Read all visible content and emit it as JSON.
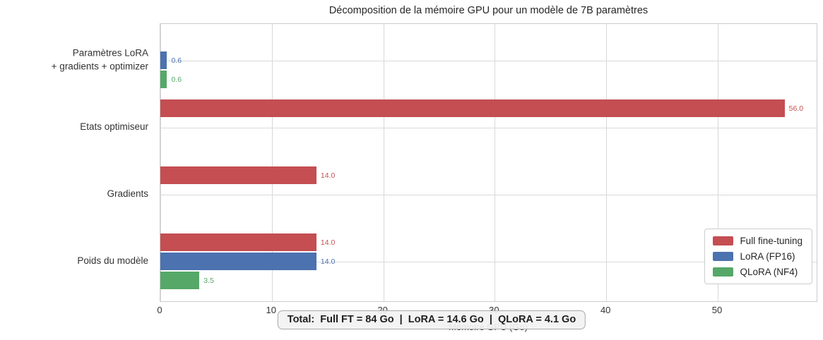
{
  "title": "Décomposition de la mémoire GPU pour un modèle de 7B paramètres",
  "total_note": "Total:  Full FT = 84 Go  |  LoRA = 14.6 Go  |  QLoRA = 4.1 Go",
  "chart_data": {
    "type": "bar",
    "orientation": "horizontal",
    "title": "Décomposition de la mémoire GPU pour un modèle de 7B paramètres",
    "xlabel": "Mémoire GPU (Go)",
    "xlim": [
      0,
      59
    ],
    "xticks": [
      0,
      10,
      20,
      30,
      40,
      50
    ],
    "grid": true,
    "legend_position": "lower right",
    "categories": [
      "Paramètres LoRA\n+ gradients + optimizer",
      "Etats optimiseur",
      "Gradients",
      "Poids du modèle"
    ],
    "series": [
      {
        "name": "Full fine-tuning",
        "color": "#c44e52",
        "values": [
          0,
          56.0,
          14.0,
          14.0
        ]
      },
      {
        "name": "LoRA (FP16)",
        "color": "#4c72b0",
        "values": [
          0.6,
          0,
          0,
          14.0
        ]
      },
      {
        "name": "QLoRA (NF4)",
        "color": "#55a868",
        "values": [
          0.6,
          0,
          0,
          3.5
        ]
      }
    ],
    "value_label_format": "one_decimal",
    "totals": {
      "full_ft_go": 84,
      "lora_go": 14.6,
      "qlora_go": 4.1
    }
  },
  "colors": {
    "grid": "#d9d9d9",
    "spine": "#cccccc",
    "text": "#333333",
    "note_background": "#f2f2f2",
    "note_border": "#aaaaaa"
  }
}
